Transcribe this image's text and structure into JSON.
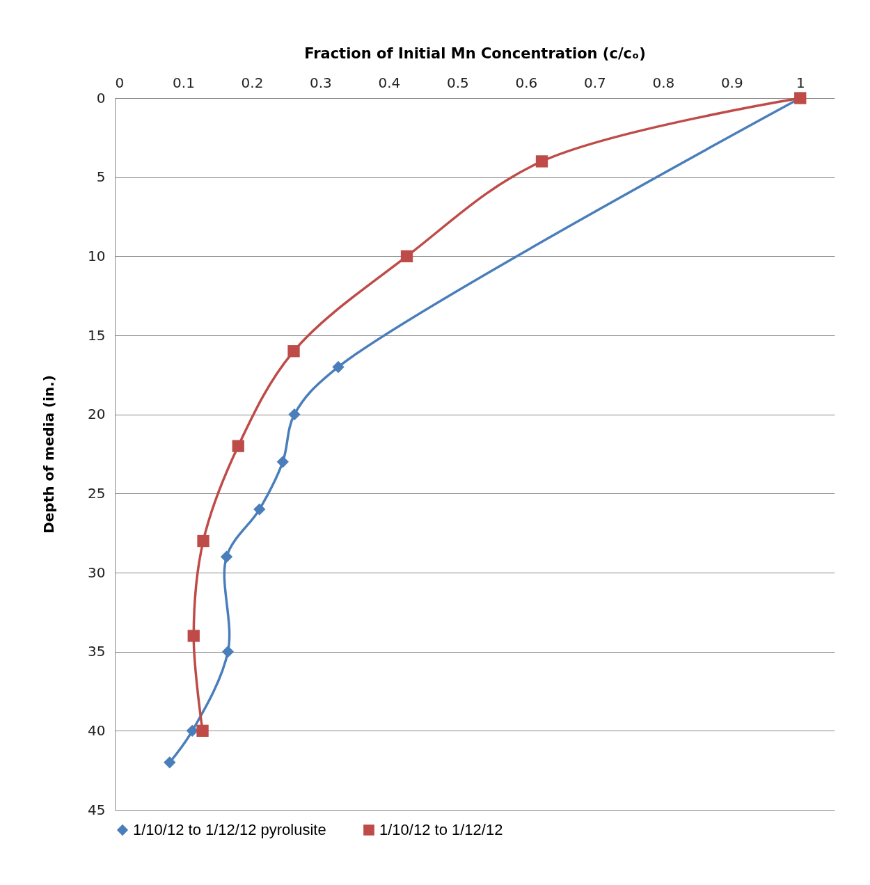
{
  "chart_data": {
    "type": "line",
    "xlabel": "Fraction of Initial Mn Concentration (c/cₒ)",
    "ylabel": "Depth of media (in.)",
    "xlim": [
      0,
      1.05
    ],
    "xticks": [
      0,
      0.1,
      0.2,
      0.3,
      0.4,
      0.5,
      0.6,
      0.7,
      0.8,
      0.9,
      1
    ],
    "ylim": [
      45,
      0
    ],
    "yticks": [
      0,
      5,
      10,
      15,
      20,
      25,
      30,
      35,
      40,
      45
    ],
    "grid": "y",
    "legend": "bottom",
    "line_style": "solid",
    "series": [
      {
        "name": "1/10/12 to 1/12/12 pyrolusite",
        "color": "#4a7ebb",
        "marker": "diamond",
        "x": [
          1,
          0.326,
          0.262,
          0.245,
          0.211,
          0.163,
          0.165,
          0.113,
          0.08
        ],
        "values": [
          0,
          17,
          20,
          23,
          26,
          29,
          35,
          40,
          42
        ]
      },
      {
        "name": "1/10/12 to 1/12/12",
        "color": "#be4b48",
        "marker": "square",
        "x": [
          1,
          0.623,
          0.426,
          0.261,
          0.18,
          0.129,
          0.115,
          0.128
        ],
        "values": [
          0,
          4,
          10,
          16,
          22,
          28,
          34,
          40
        ]
      }
    ]
  }
}
